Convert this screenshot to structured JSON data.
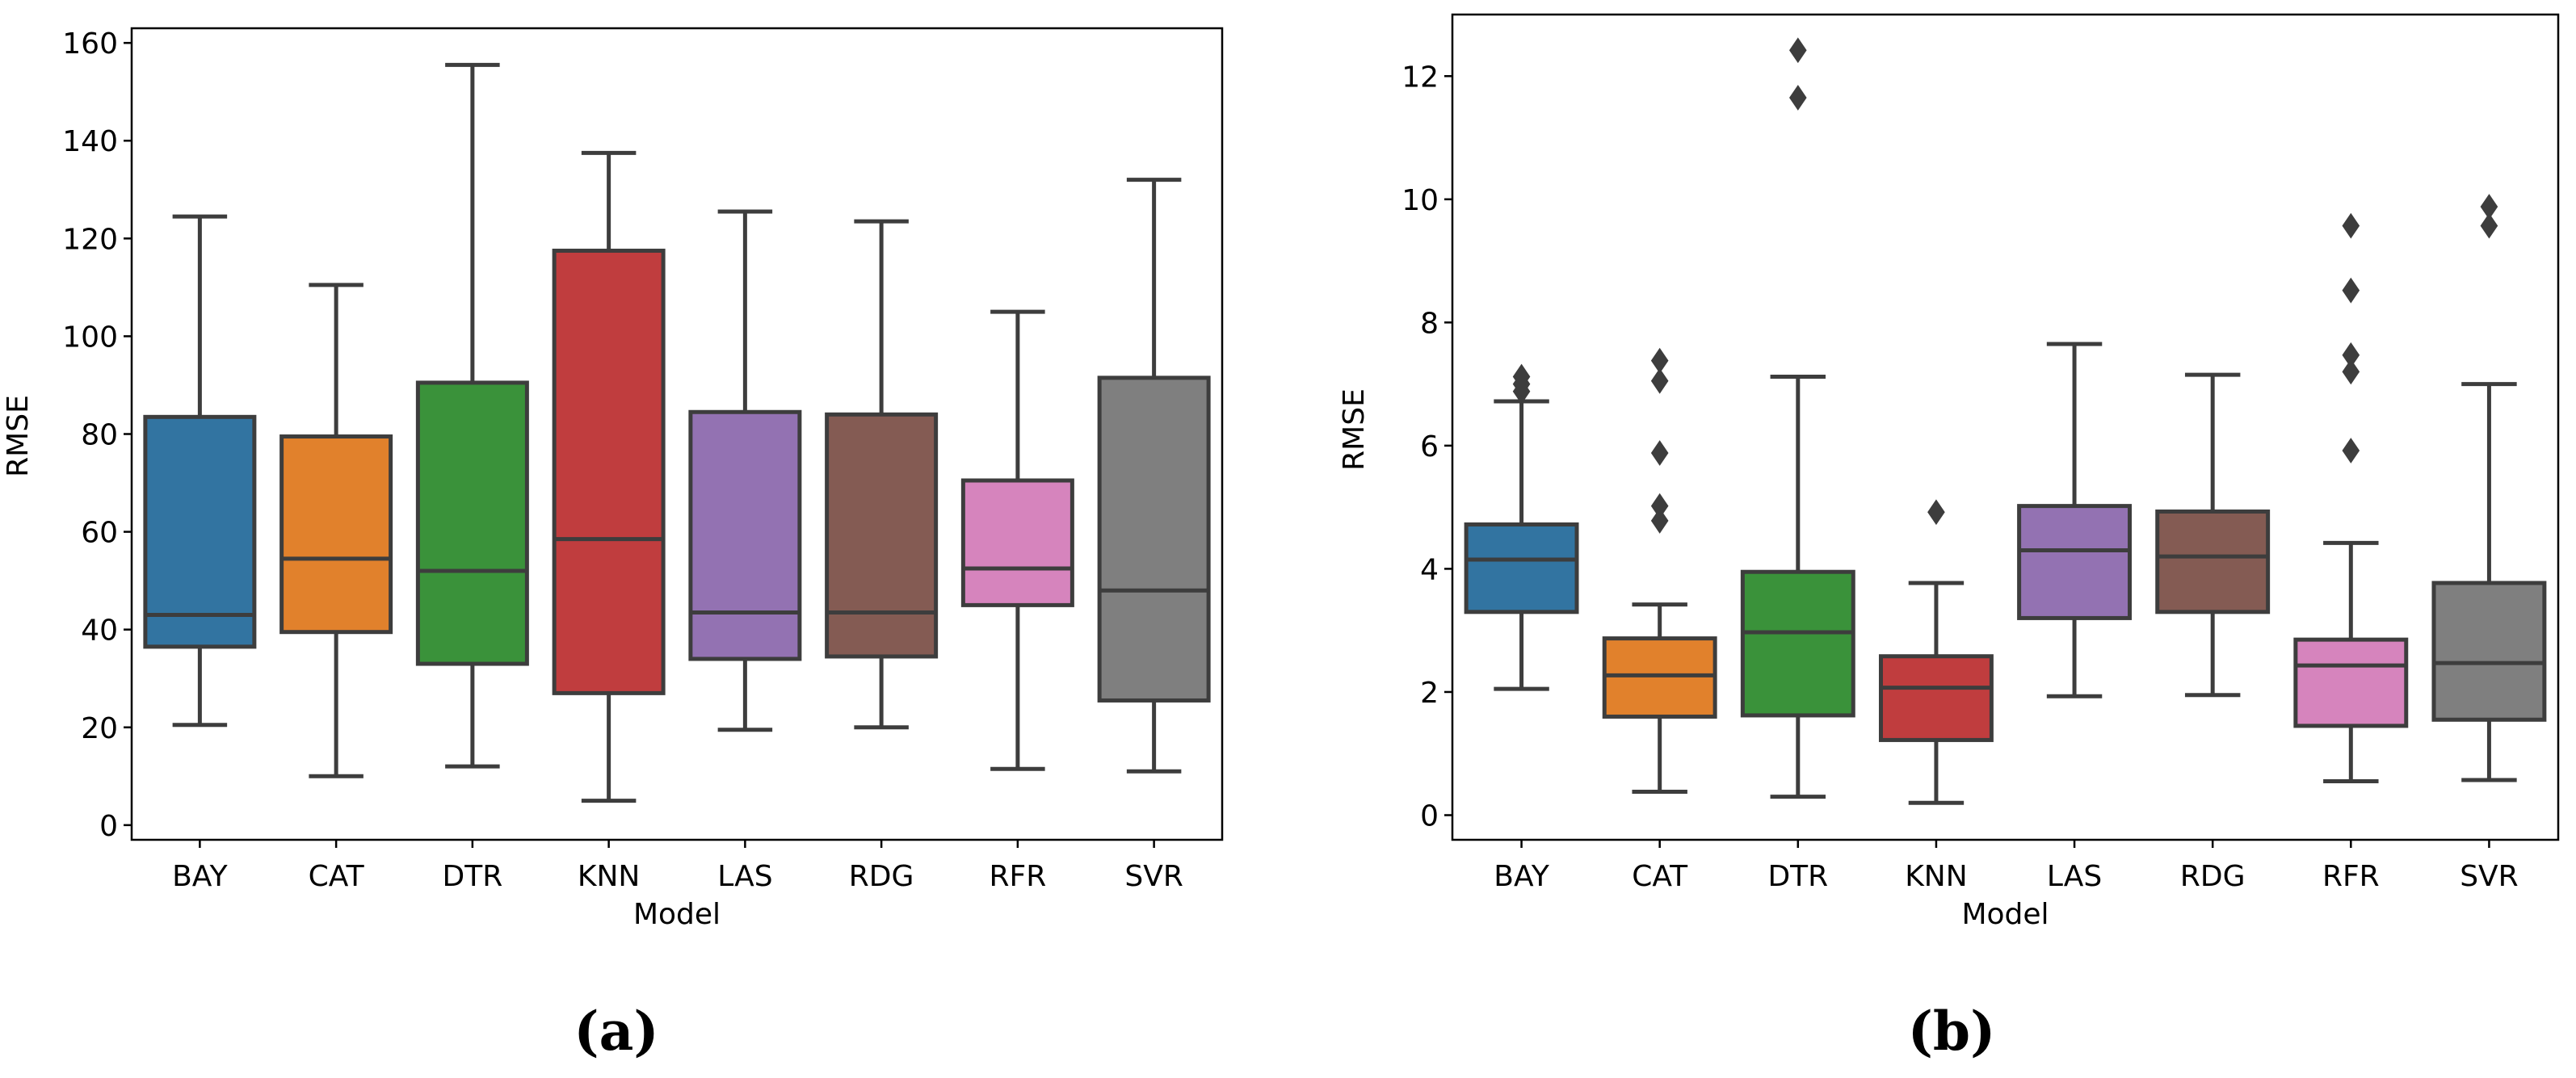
{
  "chart_data": [
    {
      "type": "box",
      "panel_label": "(a)",
      "title": "",
      "xlabel": "Model",
      "ylabel": "RMSE",
      "ylim": [
        -3,
        163
      ],
      "yticks": [
        0,
        20,
        40,
        60,
        80,
        100,
        120,
        140,
        160
      ],
      "grid": false,
      "categories": [
        "BAY",
        "CAT",
        "DTR",
        "KNN",
        "LAS",
        "RDG",
        "RFR",
        "SVR"
      ],
      "series": [
        {
          "name": "BAY",
          "color": "#3274a1",
          "min": 20.5,
          "q1": 36.5,
          "median": 43,
          "q3": 83.5,
          "max": 124.5,
          "outliers": []
        },
        {
          "name": "CAT",
          "color": "#e1812c",
          "min": 10,
          "q1": 39.5,
          "median": 54.5,
          "q3": 79.5,
          "max": 110.5,
          "outliers": []
        },
        {
          "name": "DTR",
          "color": "#3a923a",
          "min": 12,
          "q1": 33,
          "median": 52,
          "q3": 90.5,
          "max": 155.5,
          "outliers": []
        },
        {
          "name": "KNN",
          "color": "#c03d3e",
          "min": 5,
          "q1": 27,
          "median": 58.5,
          "q3": 117.5,
          "max": 137.5,
          "outliers": []
        },
        {
          "name": "LAS",
          "color": "#9372b2",
          "min": 19.5,
          "q1": 34,
          "median": 43.5,
          "q3": 84.5,
          "max": 125.5,
          "outliers": []
        },
        {
          "name": "RDG",
          "color": "#845b53",
          "min": 20,
          "q1": 34.5,
          "median": 43.5,
          "q3": 84,
          "max": 123.5,
          "outliers": []
        },
        {
          "name": "RFR",
          "color": "#d684bd",
          "min": 11.5,
          "q1": 45,
          "median": 52.5,
          "q3": 70.5,
          "max": 105,
          "outliers": []
        },
        {
          "name": "SVR",
          "color": "#7f7f7f",
          "min": 11,
          "q1": 25.5,
          "median": 48,
          "q3": 91.5,
          "max": 132,
          "outliers": []
        }
      ]
    },
    {
      "type": "box",
      "panel_label": "(b)",
      "title": "",
      "xlabel": "Model",
      "ylabel": "RMSE",
      "ylim": [
        -0.4,
        13.0
      ],
      "yticks": [
        0,
        2,
        4,
        6,
        8,
        10,
        12
      ],
      "grid": false,
      "categories": [
        "BAY",
        "CAT",
        "DTR",
        "KNN",
        "LAS",
        "RDG",
        "RFR",
        "SVR"
      ],
      "series": [
        {
          "name": "BAY",
          "color": "#3274a1",
          "min": 2.05,
          "q1": 3.3,
          "median": 4.15,
          "q3": 4.72,
          "max": 6.72,
          "outliers": [
            6.88,
            7.0,
            7.12
          ]
        },
        {
          "name": "CAT",
          "color": "#e1812c",
          "min": 0.38,
          "q1": 1.6,
          "median": 2.27,
          "q3": 2.87,
          "max": 3.42,
          "outliers": [
            4.78,
            5.02,
            5.88,
            7.05,
            7.38
          ]
        },
        {
          "name": "DTR",
          "color": "#3a923a",
          "min": 0.3,
          "q1": 1.62,
          "median": 2.97,
          "q3": 3.95,
          "max": 7.12,
          "outliers": [
            11.65,
            12.42
          ]
        },
        {
          "name": "KNN",
          "color": "#c03d3e",
          "min": 0.2,
          "q1": 1.22,
          "median": 2.07,
          "q3": 2.58,
          "max": 3.77,
          "outliers": [
            4.92
          ]
        },
        {
          "name": "LAS",
          "color": "#9372b2",
          "min": 1.93,
          "q1": 3.2,
          "median": 4.3,
          "q3": 5.02,
          "max": 7.65,
          "outliers": []
        },
        {
          "name": "RDG",
          "color": "#845b53",
          "min": 1.95,
          "q1": 3.3,
          "median": 4.2,
          "q3": 4.93,
          "max": 7.15,
          "outliers": []
        },
        {
          "name": "RFR",
          "color": "#d684bd",
          "min": 0.55,
          "q1": 1.45,
          "median": 2.43,
          "q3": 2.85,
          "max": 4.42,
          "outliers": [
            5.92,
            7.2,
            7.47,
            8.52,
            9.57
          ]
        },
        {
          "name": "SVR",
          "color": "#7f7f7f",
          "min": 0.57,
          "q1": 1.55,
          "median": 2.47,
          "q3": 3.77,
          "max": 7.0,
          "outliers": [
            9.57,
            9.88
          ]
        }
      ]
    }
  ]
}
